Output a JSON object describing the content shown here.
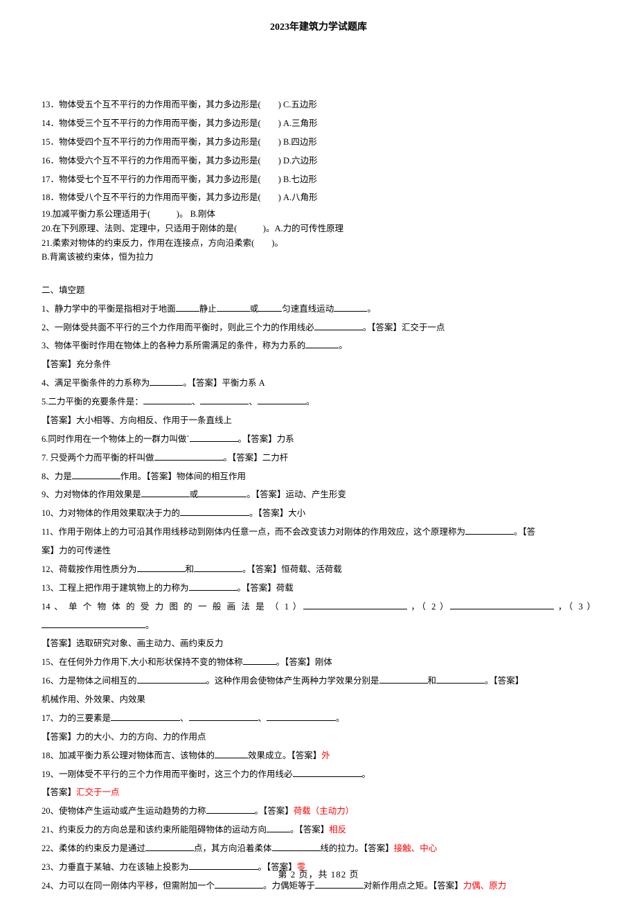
{
  "header": {
    "title": "2023年建筑力学试题库"
  },
  "footer": {
    "text": "第 2 页，共 182 页"
  },
  "colors": {
    "text": "#000000",
    "bg": "#ffffff",
    "red": "#ff0000"
  },
  "typography": {
    "body_fontsize": 12.5,
    "header_fontsize": 14,
    "footer_fontsize": 13,
    "line_height": 2.15
  },
  "mc": {
    "q13": {
      "stem": "13．物体受五个互不平行的力作用而平衡，其力多边形是(　　) C.五边形"
    },
    "q14": {
      "stem": "14．物体受三个互不平行的力作用而平衡，其力多边形是(　　) A.三角形"
    },
    "q15": {
      "stem": "15．物体受四个互不平行的力作用而平衡，其力多边形是(　　) B.四边形"
    },
    "q16": {
      "stem": "16．物体受六个互不平行的力作用而平衡，其力多边形是(　　) D.六边形"
    },
    "q17": {
      "stem": "17．物体受七个互不平行的力作用而平衡，其力多边形是(　　) B.七边形"
    },
    "q18": {
      "stem": "18．物体受八个互不平行的力作用而平衡，其力多边形是(　　) A.八角形"
    },
    "q19": {
      "stem": "19.加减平衡力系公理适用于(　　　)。  B.刚体"
    },
    "q20": {
      "stem": "20.在下列原理、法则、定理中，只适用于刚体的是(　　　)。A.力的可传性原理"
    },
    "q21a": {
      "stem": "21.柔索对物体的约束反力，作用在连接点，方向沿柔索(　　)。"
    },
    "q21b": {
      "stem": " B.背离该被约束体，恒为拉力"
    }
  },
  "section2": {
    "title": "二、填空题"
  },
  "fb": {
    "q1": {
      "pre": "1、静力学中的平衡是指相对于地面",
      "mid1": "静止",
      "mid2": "或",
      "mid3": "匀速直线运动",
      "post": "。"
    },
    "q2": {
      "pre": "2、一刚体受共面不平行的三个力作用而平衡时，则此三个力的作用线必",
      "post": "。【答案】汇交于一点"
    },
    "q3": {
      "pre": "3、物体平衡时作用在物体上的各种力系所需满足的条件，称为力系的",
      "post": "。"
    },
    "q3ans": "【答案】充分条件",
    "q4": {
      "pre": "4、满足平衡条件的力系称为",
      "post": "。【答案】平衡力系 A"
    },
    "q5": {
      "pre": "5.二力平衡的充要条件是：",
      "sep": "、",
      "post": "。"
    },
    "q5ans": "【答案】大小相等、方向相反、作用于一条直线上",
    "q6": {
      "pre": "6.同时作用在一个物体上的一群力叫做`",
      "post": "。【答案】力系"
    },
    "q7": {
      "pre": "7. 只受两个力而平衡的杆叫做",
      "post": "。【答案】二力杆"
    },
    "q8": {
      "pre": "8、力是",
      "post": "作用。【答案】物体间的相互作用"
    },
    "q9": {
      "pre": "9、力对物体的作用效果是",
      "mid": "或",
      "post": "。【答案】运动、产生形变"
    },
    "q10": {
      "pre": "10、力对物体的作用效果取决于力的",
      "post": "。【答案】大小"
    },
    "q11": {
      "pre": "11、作用于刚体上的力可沿其作用线移动到刚体内任意一点，而不会改变该力对刚体的作用效应，这个原理称为",
      "post": "。【答"
    },
    "q11b": "案】力的可传递性",
    "q12": {
      "pre": "12、荷载按作用性质分为",
      "mid": "和",
      "post": "。【答案】恒荷载、活荷载"
    },
    "q13": {
      "pre": "13、工程上把作用于建筑物上的力称为",
      "post": "。【答案】荷载"
    },
    "q14": {
      "pre": "14 、 单 个 物 体 的 受 力 图 的 一 般 画 法 是 （ 1 ）",
      "mid1": " ，（ 2 ）",
      "mid2": " ，（ 3 ）"
    },
    "q14b": "。",
    "q14ans": "【答案】选取研究对象、画主动力、画约束反力",
    "q15": {
      "pre": "15、在任何外力作用下,大小和形状保持不变的物体称",
      "post": "。【答案】刚体"
    },
    "q16": {
      "pre": "16、力是物体之间相互的",
      "mid1": "。这种作用会使物体产生两种力学效果分别是",
      "mid2": "和",
      "post": "。【答案】"
    },
    "q16b": "机械作用、外效果、内效果",
    "q17": {
      "pre": "17、力的三要素是",
      "sep": "、",
      "post": "。"
    },
    "q17ans": "【答案】力的大小、力的方向、力的作用点",
    "q18": {
      "pre": "18、加减平衡力系公理对物体而言、该物体的",
      "post": "效果成立。【答案】",
      "red": "外"
    },
    "q19": {
      "pre": "19、一刚体受不平行的三个力作用而平衡时，这三个力的作用线必",
      "post": "。"
    },
    "q19ans": {
      "pre": "【答案】",
      "red": "汇交于一点"
    },
    "q20": {
      "pre": "20、使物体产生运动或产生运动趋势的力称",
      "post": "。【答案】",
      "red": "荷载（主动力）"
    },
    "q21": {
      "pre": "21、约束反力的方向总是和该约束所能阻碍物体的运动方向",
      "post": "。【答案】",
      "red": "相反"
    },
    "q22": {
      "pre": "22、柔体的约束反力是通过",
      "mid": "点，其方向沿着柔体",
      "post": "线的拉力。【答案】",
      "red": "接触、中心"
    },
    "q23": {
      "pre": "23、力垂直于某轴、力在该轴上投影为",
      "post": "。【答案】",
      "red": "零"
    },
    "q24": {
      "pre": "24、力可以在同一刚体内平移，但需附加一个",
      "mid": "。力偶矩等于",
      "post": "对新作用点之矩。【答案】",
      "red": "力偶、原力"
    }
  }
}
